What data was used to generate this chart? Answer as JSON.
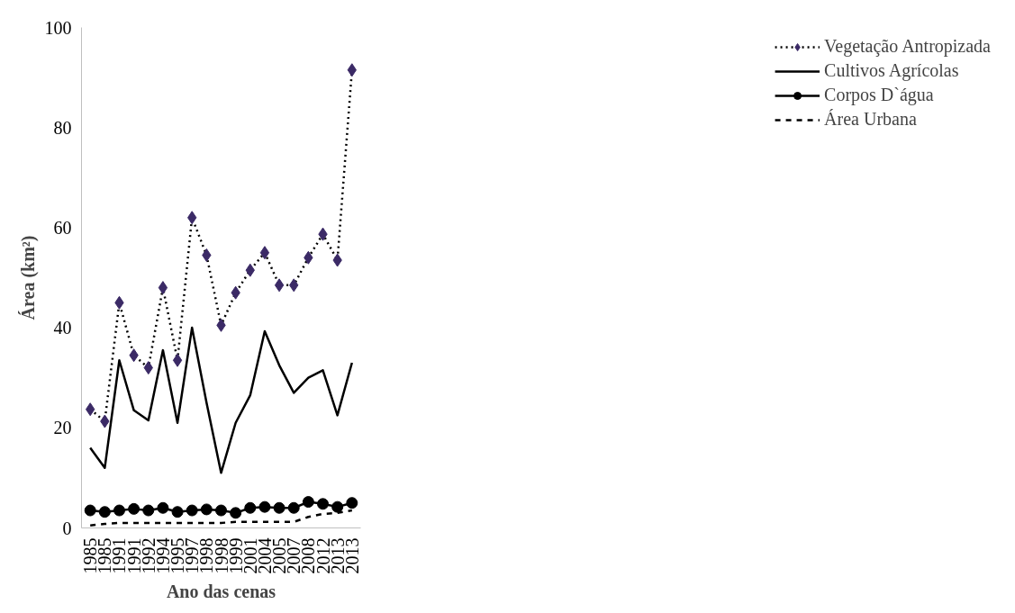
{
  "chart_data": {
    "type": "line",
    "xlabel": "Ano das cenas",
    "ylabel": "Área (km²)",
    "categories": [
      "1985",
      "1985",
      "1991",
      "1991",
      "1992",
      "1994",
      "1995",
      "1997",
      "1998",
      "1998",
      "1999",
      "2001",
      "2004",
      "2005",
      "2007",
      "2008",
      "2012",
      "2013",
      "2013"
    ],
    "ylim": [
      0,
      100
    ],
    "yticks": [
      0,
      20,
      40,
      60,
      80,
      100
    ],
    "grid": false,
    "legend": "right",
    "series": [
      {
        "name": "Vegetação Antropizada",
        "color": "#3b2a66",
        "line_style": "dotted",
        "marker": "diamond",
        "values": [
          23.7,
          21.3,
          45,
          34.5,
          32,
          48,
          33.5,
          62,
          54.5,
          40.5,
          47,
          51.5,
          55,
          48.5,
          48.5,
          54,
          58.7,
          53.5,
          91.5
        ]
      },
      {
        "name": "Cultivos Agrícolas",
        "color": "#000000",
        "line_style": "solid",
        "marker": "none",
        "values": [
          16,
          12,
          33.5,
          23.5,
          21.5,
          35.5,
          21,
          40,
          25,
          11,
          21,
          26.5,
          39.3,
          32.5,
          27,
          30,
          31.5,
          22.5,
          33
        ]
      },
      {
        "name": "Corpos D`água",
        "color": "#000000",
        "line_style": "solid",
        "marker": "circle",
        "values": [
          3.5,
          3.2,
          3.5,
          3.8,
          3.5,
          4,
          3.2,
          3.5,
          3.7,
          3.5,
          3,
          4,
          4.2,
          4,
          4,
          5.2,
          4.8,
          4.2,
          5
        ]
      },
      {
        "name": "Área Urbana",
        "color": "#000000",
        "line_style": "dashed",
        "marker": "none",
        "values": [
          0.5,
          0.8,
          1,
          1,
          1,
          1,
          1,
          1,
          1,
          1,
          1.2,
          1.2,
          1.2,
          1.2,
          1.2,
          2.2,
          2.8,
          3,
          3.5
        ]
      }
    ]
  }
}
